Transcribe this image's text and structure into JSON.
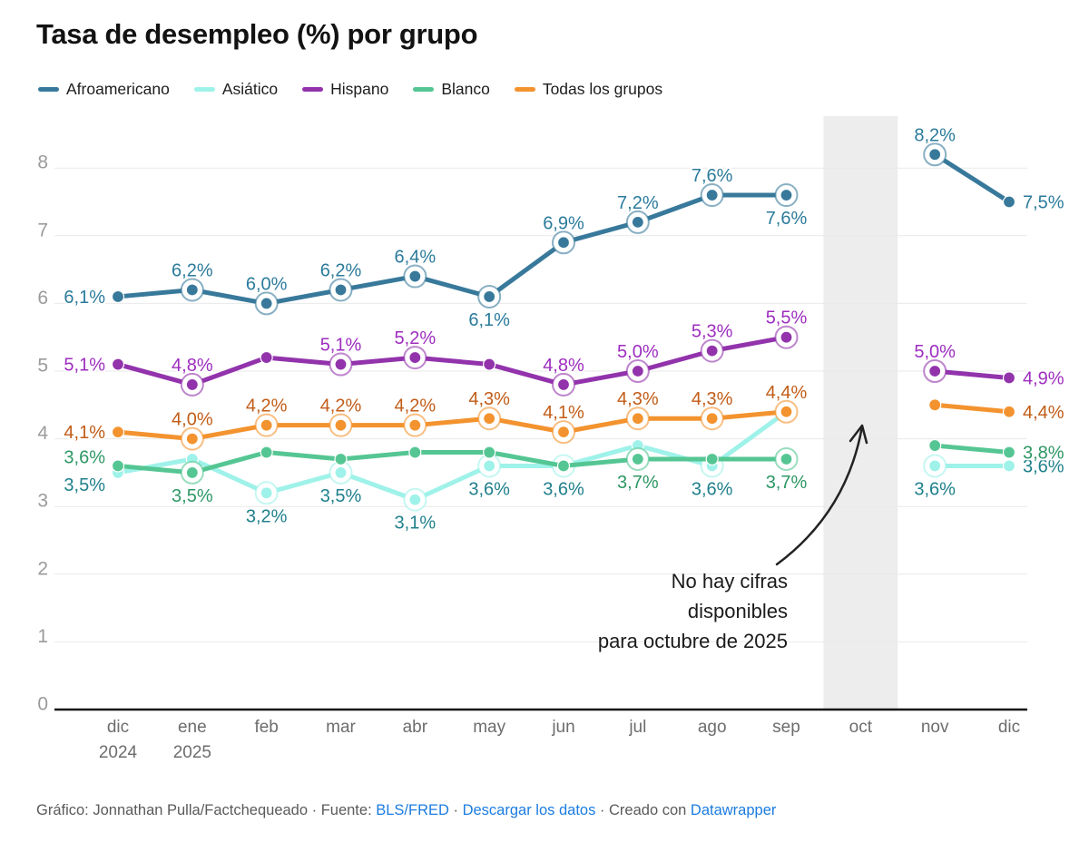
{
  "chart_data": {
    "type": "line",
    "title": "Tasa de desempleo (%) por grupo",
    "ylim": [
      0,
      8
    ],
    "yticks": [
      0,
      1,
      2,
      3,
      4,
      5,
      6,
      7,
      8
    ],
    "grid": true,
    "legend_position": "top",
    "x_categories": [
      "dic",
      "ene",
      "feb",
      "mar",
      "abr",
      "may",
      "jun",
      "jul",
      "ago",
      "sep",
      "oct",
      "nov",
      "dic"
    ],
    "x_sub_labels": {
      "0": "2024",
      "1": "2025"
    },
    "series": [
      {
        "key": "afroamericano",
        "name": "Afroamericano",
        "color": "#38799B",
        "label_color": "#2B7B9C",
        "values": [
          6.1,
          6.2,
          6.0,
          6.2,
          6.4,
          6.1,
          6.9,
          7.2,
          7.6,
          7.6,
          null,
          8.2,
          7.5
        ],
        "labels": [
          "6,1%",
          "6,2%",
          "6,0%",
          "6,2%",
          "6,4%",
          "6,1%",
          "6,9%",
          "7,2%",
          "7,6%",
          "7,6%",
          null,
          "8,2%",
          "7,5%"
        ],
        "label_pos": [
          "left",
          "above",
          "above",
          "above",
          "above",
          "below",
          "above",
          "above",
          "above",
          "below",
          null,
          "above",
          "right"
        ]
      },
      {
        "key": "asiatico",
        "name": "Asiático",
        "color": "#9FF2E9",
        "label_color": "#1F808C",
        "values": [
          3.5,
          3.7,
          3.2,
          3.5,
          3.1,
          3.6,
          3.6,
          3.9,
          3.6,
          4.4,
          null,
          3.6,
          3.6
        ],
        "labels": [
          "3,5%",
          null,
          "3,2%",
          "3,5%",
          "3,1%",
          "3,6%",
          "3,6%",
          null,
          "3,6%",
          null,
          null,
          "3,6%",
          "3,6%"
        ],
        "label_pos": [
          "left",
          null,
          "below",
          "below",
          "below",
          "below",
          "below",
          null,
          "below",
          null,
          null,
          "below",
          "right"
        ]
      },
      {
        "key": "hispano",
        "name": "Hispano",
        "color": "#9233AC",
        "label_color": "#9D2DBF",
        "values": [
          5.1,
          4.8,
          5.2,
          5.1,
          5.2,
          5.1,
          4.8,
          5.0,
          5.3,
          5.5,
          null,
          5.0,
          4.9
        ],
        "labels": [
          "5,1%",
          "4,8%",
          null,
          "5,1%",
          "5,2%",
          null,
          "4,8%",
          "5,0%",
          "5,3%",
          "5,5%",
          null,
          "5,0%",
          "4,9%"
        ],
        "label_pos": [
          "left",
          "above",
          null,
          "above",
          "above",
          null,
          "above",
          "above",
          "above",
          "above",
          null,
          "above",
          "right"
        ]
      },
      {
        "key": "blanco",
        "name": "Blanco",
        "color": "#55C693",
        "label_color": "#2E9765",
        "values": [
          3.6,
          3.5,
          3.8,
          3.7,
          3.8,
          3.8,
          3.6,
          3.7,
          3.7,
          3.7,
          null,
          3.9,
          3.8
        ],
        "labels": [
          "3,6%",
          "3,5%",
          null,
          null,
          null,
          null,
          null,
          "3,7%",
          null,
          "3,7%",
          null,
          null,
          "3,8%"
        ],
        "label_pos": [
          "left",
          "below",
          null,
          null,
          null,
          null,
          null,
          "below",
          null,
          "below",
          null,
          null,
          "right"
        ]
      },
      {
        "key": "todas",
        "name": "Todas los grupos",
        "color": "#F3932F",
        "label_color": "#C25C17",
        "values": [
          4.1,
          4.0,
          4.2,
          4.2,
          4.2,
          4.3,
          4.1,
          4.3,
          4.3,
          4.4,
          null,
          4.5,
          4.4
        ],
        "labels": [
          "4,1%",
          "4,0%",
          "4,2%",
          "4,2%",
          "4,2%",
          "4,3%",
          "4,1%",
          "4,3%",
          "4,3%",
          "4,4%",
          null,
          null,
          "4,4%"
        ],
        "label_pos": [
          "left",
          "above",
          "above",
          "above",
          "above",
          "above",
          "above",
          "above",
          "above",
          "above",
          null,
          null,
          "right"
        ]
      }
    ],
    "no_data_band": {
      "month_index": 10,
      "color": "#EDEDED"
    },
    "annotation": {
      "lines": [
        "No hay cifras",
        "disponibles",
        "para octubre de 2025"
      ],
      "color": "#1B1B1B"
    }
  },
  "footer": {
    "prefix": "Gráfico: Jonnathan Pulla/Factchequeado · Fuente: ",
    "link_source": "BLS/FRED",
    "sep1": " · ",
    "link_download": "Descargar los datos",
    "sep2": " · Creado con ",
    "link_tool": "Datawrapper"
  }
}
